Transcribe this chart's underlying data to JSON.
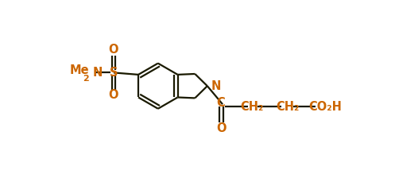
{
  "background_color": "#ffffff",
  "bond_color": "#1a1a00",
  "label_color": "#cc6600",
  "figsize": [
    4.97,
    2.29
  ],
  "dpi": 100,
  "bond_lw": 1.6,
  "font_size": 10.5,
  "xlim": [
    -2.2,
    4.0
  ],
  "ylim": [
    -1.3,
    1.3
  ]
}
